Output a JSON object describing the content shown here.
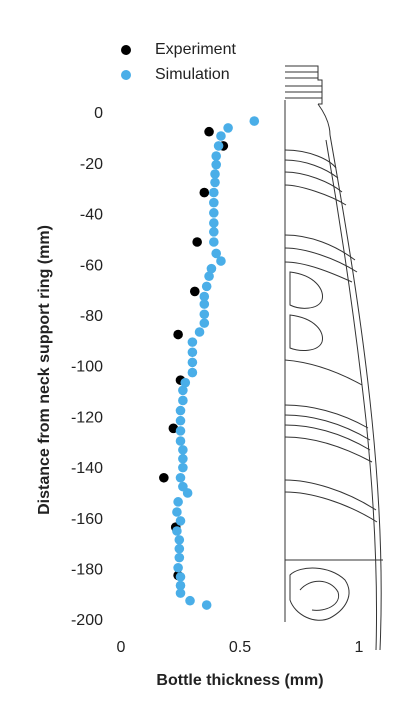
{
  "chart_data": {
    "type": "scatter",
    "xlabel": "Bottle thickness (mm)",
    "ylabel": "Distance from neck support ring (mm)",
    "xlim": [
      0,
      1.1
    ],
    "xticks": [
      0,
      0.5,
      1
    ],
    "ylim": [
      -200,
      5
    ],
    "yticks": [
      0,
      -20,
      -40,
      -60,
      -80,
      -100,
      -120,
      -140,
      -160,
      -180,
      -200
    ],
    "legend": "top-left",
    "series": [
      {
        "name": "Experiment",
        "color": "#000000",
        "x": [
          0.37,
          0.43,
          0.35,
          0.32,
          0.31,
          0.24,
          0.25,
          0.22,
          0.18,
          0.23,
          0.24
        ],
        "values": [
          -7,
          -12.6,
          -31,
          -50.5,
          -70,
          -87,
          -105,
          -124,
          -143.5,
          -163,
          -182
        ]
      },
      {
        "name": "Simulation",
        "color": "#4aaee8",
        "x": [
          0.56,
          0.45,
          0.42,
          0.41,
          0.4,
          0.4,
          0.395,
          0.395,
          0.39,
          0.39,
          0.39,
          0.39,
          0.39,
          0.39,
          0.4,
          0.42,
          0.38,
          0.37,
          0.36,
          0.35,
          0.35,
          0.35,
          0.35,
          0.33,
          0.3,
          0.3,
          0.3,
          0.3,
          0.27,
          0.26,
          0.26,
          0.25,
          0.25,
          0.25,
          0.25,
          0.26,
          0.26,
          0.26,
          0.25,
          0.26,
          0.28,
          0.24,
          0.235,
          0.25,
          0.235,
          0.245,
          0.245,
          0.245,
          0.24,
          0.25,
          0.25,
          0.25,
          0.29,
          0.36
        ],
        "values": [
          -2.8,
          -5.5,
          -8.7,
          -12.6,
          -16.6,
          -20,
          -23.7,
          -27,
          -31,
          -35,
          -39,
          -43,
          -46.5,
          -50.5,
          -55,
          -58,
          -61,
          -64,
          -68,
          -72,
          -75,
          -79,
          -82.5,
          -86,
          -90,
          -94,
          -98,
          -102,
          -106,
          -109,
          -113,
          -117,
          -121,
          -125,
          -129,
          -132.5,
          -136,
          -139.5,
          -143.5,
          -147,
          -149.5,
          -153,
          -157,
          -160.5,
          -164.5,
          -168,
          -171.5,
          -175,
          -179,
          -182.6,
          -186,
          -189,
          -192,
          -193.7
        ]
      }
    ]
  }
}
